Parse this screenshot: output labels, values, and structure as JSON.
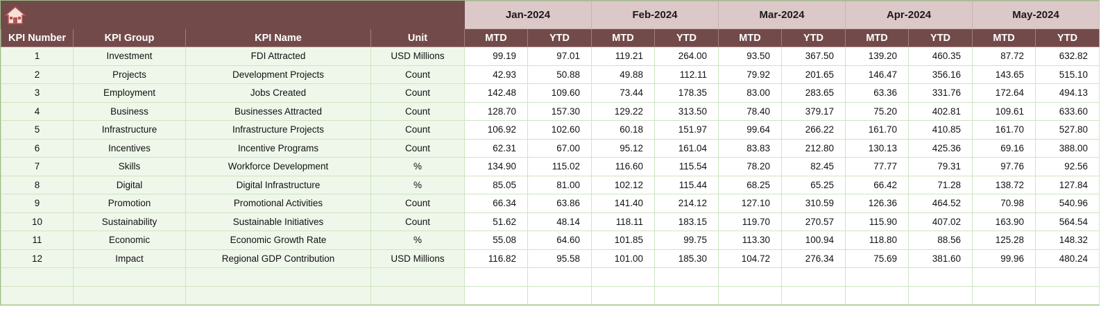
{
  "table": {
    "months": [
      "Jan-2024",
      "Feb-2024",
      "Mar-2024",
      "Apr-2024",
      "May-2024"
    ],
    "columns": [
      "KPI Number",
      "KPI Group",
      "KPI Name",
      "Unit"
    ],
    "subcolumns": [
      "MTD",
      "YTD"
    ],
    "rows": [
      [
        "1",
        "Investment",
        "FDI Attracted",
        "USD Millions",
        "99.19",
        "97.01",
        "119.21",
        "264.00",
        "93.50",
        "367.50",
        "139.20",
        "460.35",
        "87.72",
        "632.82"
      ],
      [
        "2",
        "Projects",
        "Development Projects",
        "Count",
        "42.93",
        "50.88",
        "49.88",
        "112.11",
        "79.92",
        "201.65",
        "146.47",
        "356.16",
        "143.65",
        "515.10"
      ],
      [
        "3",
        "Employment",
        "Jobs Created",
        "Count",
        "142.48",
        "109.60",
        "73.44",
        "178.35",
        "83.00",
        "283.65",
        "63.36",
        "331.76",
        "172.64",
        "494.13"
      ],
      [
        "4",
        "Business",
        "Businesses Attracted",
        "Count",
        "128.70",
        "157.30",
        "129.22",
        "313.50",
        "78.40",
        "379.17",
        "75.20",
        "402.81",
        "109.61",
        "633.60"
      ],
      [
        "5",
        "Infrastructure",
        "Infrastructure Projects",
        "Count",
        "106.92",
        "102.60",
        "60.18",
        "151.97",
        "99.64",
        "266.22",
        "161.70",
        "410.85",
        "161.70",
        "527.80"
      ],
      [
        "6",
        "Incentives",
        "Incentive Programs",
        "Count",
        "62.31",
        "67.00",
        "95.12",
        "161.04",
        "83.83",
        "212.80",
        "130.13",
        "425.36",
        "69.16",
        "388.00"
      ],
      [
        "7",
        "Skills",
        "Workforce Development",
        "%",
        "134.90",
        "115.02",
        "116.60",
        "115.54",
        "78.20",
        "82.45",
        "77.77",
        "79.31",
        "97.76",
        "92.56"
      ],
      [
        "8",
        "Digital",
        "Digital Infrastructure",
        "%",
        "85.05",
        "81.00",
        "102.12",
        "115.44",
        "68.25",
        "65.25",
        "66.42",
        "71.28",
        "138.72",
        "127.84"
      ],
      [
        "9",
        "Promotion",
        "Promotional Activities",
        "Count",
        "66.34",
        "63.86",
        "141.40",
        "214.12",
        "127.10",
        "310.59",
        "126.36",
        "464.52",
        "70.98",
        "540.96"
      ],
      [
        "10",
        "Sustainability",
        "Sustainable Initiatives",
        "Count",
        "51.62",
        "48.14",
        "118.11",
        "183.15",
        "119.70",
        "270.57",
        "115.90",
        "407.02",
        "163.90",
        "564.54"
      ],
      [
        "11",
        "Economic",
        "Economic Growth Rate",
        "%",
        "55.08",
        "64.60",
        "101.85",
        "99.75",
        "113.30",
        "100.94",
        "118.80",
        "88.56",
        "125.28",
        "148.32"
      ],
      [
        "12",
        "Impact",
        "Regional GDP Contribution",
        "USD Millions",
        "116.82",
        "95.58",
        "101.00",
        "185.30",
        "104.72",
        "276.34",
        "75.69",
        "381.60",
        "99.96",
        "480.24"
      ]
    ]
  }
}
